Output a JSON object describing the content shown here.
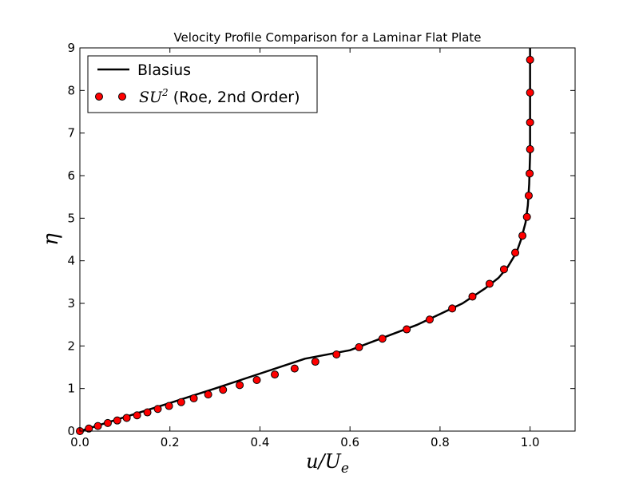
{
  "chart_data": {
    "type": "line",
    "title": "Velocity Profile Comparison for a Laminar Flat Plate",
    "xlabel": "u/U",
    "xlabel_sub": "e",
    "ylabel": "η",
    "xlim": [
      0,
      1.1
    ],
    "ylim": [
      0,
      9
    ],
    "xticks": [
      "0.0",
      "0.2",
      "0.4",
      "0.6",
      "0.8",
      "1.0"
    ],
    "xtick_values": [
      0,
      0.2,
      0.4,
      0.6,
      0.8,
      1.0
    ],
    "yticks": [
      "0",
      "1",
      "2",
      "3",
      "4",
      "5",
      "6",
      "7",
      "8",
      "9"
    ],
    "ytick_values": [
      0,
      1,
      2,
      3,
      4,
      5,
      6,
      7,
      8,
      9
    ],
    "grid": false,
    "legend_position": "top-left",
    "series": [
      {
        "name": "Blasius",
        "style": "line",
        "color": "#000000",
        "x": [
          0,
          0.1,
          0.2,
          0.3,
          0.4,
          0.5,
          0.6,
          0.7,
          0.75,
          0.8,
          0.85,
          0.9,
          0.93,
          0.95,
          0.97,
          0.98,
          0.99,
          0.995,
          0.998,
          1.0,
          1.0
        ],
        "y": [
          0,
          0.33,
          0.66,
          1.0,
          1.35,
          1.7,
          1.9,
          2.3,
          2.5,
          2.75,
          3.0,
          3.35,
          3.6,
          3.85,
          4.2,
          4.5,
          4.9,
          5.3,
          5.8,
          6.5,
          9.0
        ]
      },
      {
        "name": "SU",
        "name_sup": "2",
        "name_suffix": " (Roe, 2nd Order)",
        "style": "markers",
        "color": "#ff0000",
        "x": [
          0.0,
          0.02,
          0.04,
          0.062,
          0.083,
          0.104,
          0.127,
          0.15,
          0.173,
          0.198,
          0.225,
          0.253,
          0.285,
          0.318,
          0.355,
          0.393,
          0.433,
          0.477,
          0.523,
          0.57,
          0.62,
          0.672,
          0.726,
          0.777,
          0.827,
          0.872,
          0.91,
          0.942,
          0.967,
          0.983,
          0.993,
          0.997,
          0.999,
          1.0,
          1.0,
          1.0,
          1.0
        ],
        "y": [
          0.0,
          0.06,
          0.12,
          0.19,
          0.25,
          0.31,
          0.37,
          0.44,
          0.52,
          0.59,
          0.68,
          0.77,
          0.86,
          0.97,
          1.08,
          1.2,
          1.33,
          1.47,
          1.63,
          1.8,
          1.97,
          2.17,
          2.39,
          2.62,
          2.88,
          3.16,
          3.46,
          3.8,
          4.19,
          4.59,
          5.03,
          5.53,
          6.05,
          6.62,
          7.25,
          7.95,
          8.72
        ]
      }
    ]
  }
}
